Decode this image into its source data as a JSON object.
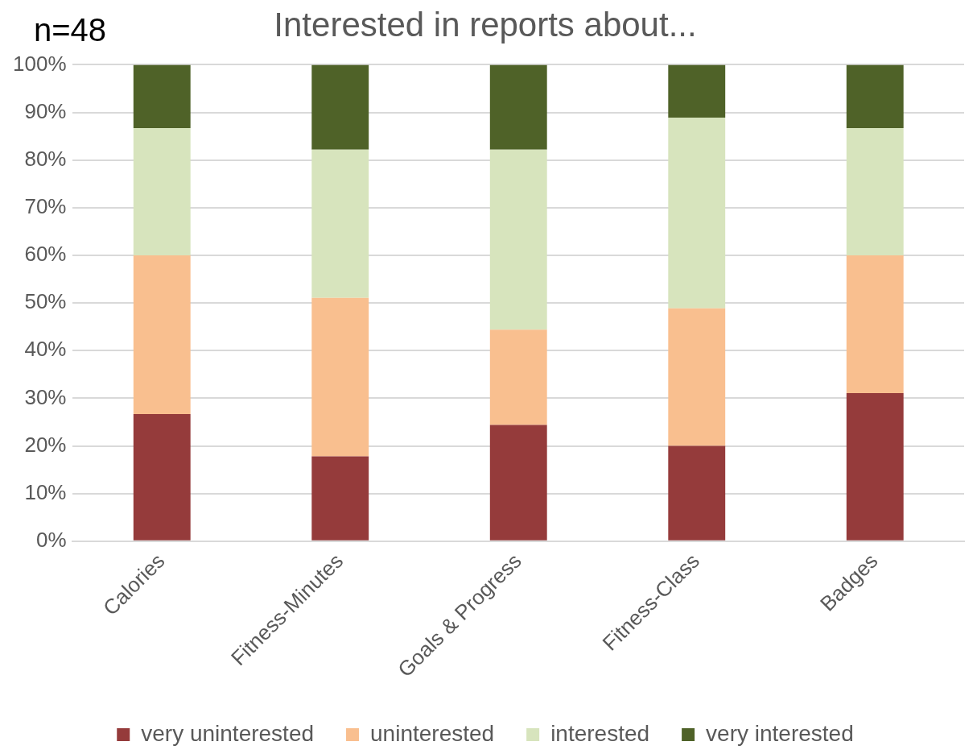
{
  "chart_data": {
    "type": "bar",
    "title": "Interested in reports about...",
    "annotations": [
      "n=48"
    ],
    "categories": [
      "Calories",
      "Fitness-Minutes",
      "Goals & Progress",
      "Fitness-Class",
      "Badges"
    ],
    "stacked": true,
    "series": [
      {
        "name": "very uninterested",
        "color": "#953b3b",
        "values": [
          26.7,
          17.8,
          24.4,
          20.0,
          31.1
        ]
      },
      {
        "name": "uninterested",
        "color": "#f9bf8f",
        "values": [
          33.3,
          33.3,
          20.0,
          28.9,
          28.9
        ]
      },
      {
        "name": "interested",
        "color": "#d7e4bd",
        "values": [
          26.7,
          31.1,
          37.8,
          40.0,
          26.7
        ]
      },
      {
        "name": "very interested",
        "color": "#4f6228",
        "values": [
          13.3,
          17.8,
          17.8,
          11.1,
          13.3
        ]
      }
    ],
    "ylim": [
      0,
      100
    ],
    "yticks": [
      {
        "value": 0,
        "label": "0%"
      },
      {
        "value": 10,
        "label": "10%"
      },
      {
        "value": 20,
        "label": "20%"
      },
      {
        "value": 30,
        "label": "30%"
      },
      {
        "value": 40,
        "label": "40%"
      },
      {
        "value": 50,
        "label": "50%"
      },
      {
        "value": 60,
        "label": "60%"
      },
      {
        "value": 70,
        "label": "70%"
      },
      {
        "value": 80,
        "label": "80%"
      },
      {
        "value": 90,
        "label": "90%"
      },
      {
        "value": 100,
        "label": "100%"
      }
    ],
    "grid": "y",
    "legend": "bottom"
  }
}
